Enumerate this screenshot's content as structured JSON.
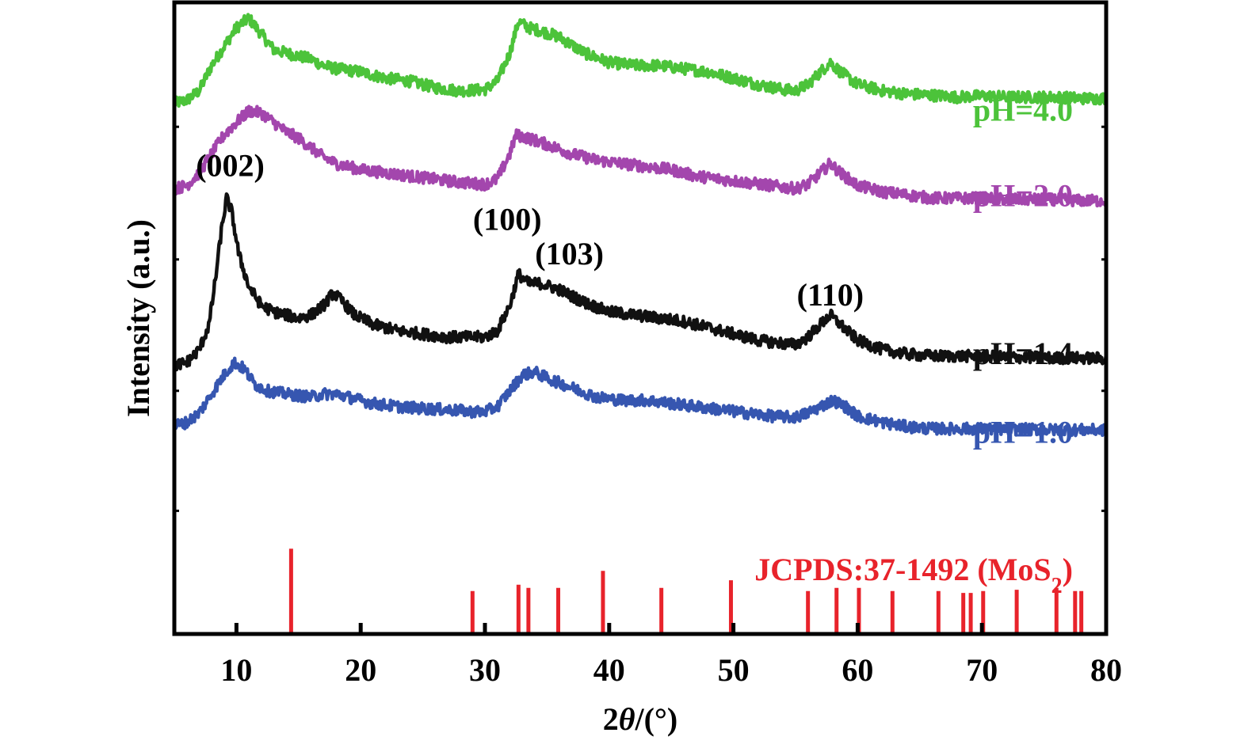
{
  "chart_data": {
    "type": "line",
    "xlabel_prefix": "2",
    "xlabel_theta": "θ",
    "xlabel_suffix": "/(°)",
    "ylabel": "Intensity (a.u.)",
    "xlim": [
      5,
      80
    ],
    "ylim": [
      0,
      1
    ],
    "x_ticks": [
      10,
      20,
      30,
      40,
      50,
      60,
      70,
      80
    ],
    "y_ticks": [
      0.195,
      0.385,
      0.593,
      0.803
    ],
    "colors": {
      "green": "#4cc33a",
      "purple": "#a346ad",
      "black": "#111111",
      "blue": "#3656b0",
      "red": "#e8232b"
    },
    "series": [
      {
        "label": "pH=4.0",
        "color": "#4cc33a",
        "points": [
          [
            5,
            0.84
          ],
          [
            6,
            0.845
          ],
          [
            7,
            0.86
          ],
          [
            8,
            0.9
          ],
          [
            9,
            0.93
          ],
          [
            10,
            0.96
          ],
          [
            11,
            0.975
          ],
          [
            12,
            0.95
          ],
          [
            13,
            0.925
          ],
          [
            14,
            0.92
          ],
          [
            15,
            0.915
          ],
          [
            16,
            0.91
          ],
          [
            17,
            0.9
          ],
          [
            18,
            0.895
          ],
          [
            20,
            0.89
          ],
          [
            22,
            0.88
          ],
          [
            24,
            0.875
          ],
          [
            26,
            0.865
          ],
          [
            28,
            0.86
          ],
          [
            30,
            0.862
          ],
          [
            31,
            0.875
          ],
          [
            32,
            0.92
          ],
          [
            32.7,
            0.97
          ],
          [
            33.5,
            0.96
          ],
          [
            34.5,
            0.955
          ],
          [
            36,
            0.945
          ],
          [
            38,
            0.92
          ],
          [
            40,
            0.905
          ],
          [
            42,
            0.9
          ],
          [
            44,
            0.9
          ],
          [
            46,
            0.895
          ],
          [
            48,
            0.89
          ],
          [
            50,
            0.88
          ],
          [
            52,
            0.87
          ],
          [
            54,
            0.862
          ],
          [
            55,
            0.86
          ],
          [
            56,
            0.87
          ],
          [
            57,
            0.89
          ],
          [
            57.8,
            0.905
          ],
          [
            58.6,
            0.89
          ],
          [
            60,
            0.87
          ],
          [
            62,
            0.86
          ],
          [
            64,
            0.855
          ],
          [
            66,
            0.853
          ],
          [
            68,
            0.85
          ],
          [
            70,
            0.852
          ],
          [
            72,
            0.85
          ],
          [
            74,
            0.85
          ],
          [
            76,
            0.85
          ],
          [
            78,
            0.848
          ],
          [
            80,
            0.848
          ]
        ]
      },
      {
        "label": "pH=2.0",
        "color": "#a346ad",
        "points": [
          [
            5,
            0.705
          ],
          [
            6,
            0.71
          ],
          [
            7,
            0.73
          ],
          [
            8,
            0.76
          ],
          [
            9,
            0.79
          ],
          [
            10,
            0.81
          ],
          [
            11,
            0.828
          ],
          [
            12,
            0.825
          ],
          [
            13,
            0.81
          ],
          [
            14,
            0.795
          ],
          [
            15,
            0.785
          ],
          [
            16,
            0.77
          ],
          [
            17,
            0.755
          ],
          [
            18,
            0.745
          ],
          [
            20,
            0.735
          ],
          [
            22,
            0.73
          ],
          [
            24,
            0.725
          ],
          [
            26,
            0.72
          ],
          [
            28,
            0.715
          ],
          [
            30,
            0.712
          ],
          [
            31,
            0.72
          ],
          [
            32,
            0.76
          ],
          [
            32.5,
            0.79
          ],
          [
            33.5,
            0.785
          ],
          [
            35,
            0.775
          ],
          [
            37,
            0.76
          ],
          [
            39,
            0.75
          ],
          [
            41,
            0.745
          ],
          [
            43,
            0.74
          ],
          [
            45,
            0.735
          ],
          [
            47,
            0.725
          ],
          [
            49,
            0.72
          ],
          [
            51,
            0.715
          ],
          [
            53,
            0.71
          ],
          [
            55,
            0.705
          ],
          [
            56,
            0.712
          ],
          [
            57,
            0.73
          ],
          [
            57.8,
            0.745
          ],
          [
            58.6,
            0.73
          ],
          [
            60,
            0.71
          ],
          [
            62,
            0.7
          ],
          [
            64,
            0.695
          ],
          [
            66,
            0.69
          ],
          [
            68,
            0.69
          ],
          [
            70,
            0.69
          ],
          [
            72,
            0.688
          ],
          [
            74,
            0.688
          ],
          [
            76,
            0.688
          ],
          [
            78,
            0.686
          ],
          [
            80,
            0.686
          ]
        ]
      },
      {
        "label": "pH=1.4",
        "color": "#111111",
        "points": [
          [
            5,
            0.425
          ],
          [
            6,
            0.43
          ],
          [
            7,
            0.45
          ],
          [
            7.8,
            0.49
          ],
          [
            8.3,
            0.56
          ],
          [
            8.8,
            0.64
          ],
          [
            9.2,
            0.69
          ],
          [
            9.6,
            0.67
          ],
          [
            10.2,
            0.6
          ],
          [
            11,
            0.55
          ],
          [
            12,
            0.52
          ],
          [
            13,
            0.51
          ],
          [
            14,
            0.505
          ],
          [
            15,
            0.5
          ],
          [
            16,
            0.505
          ],
          [
            17,
            0.52
          ],
          [
            17.8,
            0.54
          ],
          [
            18.6,
            0.525
          ],
          [
            19.5,
            0.505
          ],
          [
            21,
            0.49
          ],
          [
            23,
            0.48
          ],
          [
            25,
            0.475
          ],
          [
            27,
            0.47
          ],
          [
            29,
            0.47
          ],
          [
            30,
            0.47
          ],
          [
            31,
            0.48
          ],
          [
            32,
            0.52
          ],
          [
            32.7,
            0.57
          ],
          [
            33.5,
            0.555
          ],
          [
            34.5,
            0.555
          ],
          [
            36,
            0.545
          ],
          [
            38,
            0.525
          ],
          [
            40,
            0.51
          ],
          [
            42,
            0.505
          ],
          [
            44,
            0.5
          ],
          [
            46,
            0.495
          ],
          [
            48,
            0.485
          ],
          [
            50,
            0.475
          ],
          [
            52,
            0.465
          ],
          [
            54,
            0.46
          ],
          [
            55,
            0.458
          ],
          [
            56,
            0.47
          ],
          [
            57,
            0.49
          ],
          [
            57.8,
            0.505
          ],
          [
            58.6,
            0.49
          ],
          [
            60,
            0.465
          ],
          [
            62,
            0.45
          ],
          [
            64,
            0.443
          ],
          [
            66,
            0.44
          ],
          [
            68,
            0.44
          ],
          [
            70,
            0.44
          ],
          [
            72,
            0.438
          ],
          [
            74,
            0.438
          ],
          [
            76,
            0.437
          ],
          [
            78,
            0.437
          ],
          [
            80,
            0.436
          ]
        ]
      },
      {
        "label": "pH=1.0",
        "color": "#3656b0",
        "points": [
          [
            5,
            0.33
          ],
          [
            6,
            0.335
          ],
          [
            7,
            0.35
          ],
          [
            8,
            0.38
          ],
          [
            9,
            0.41
          ],
          [
            9.8,
            0.43
          ],
          [
            10.6,
            0.42
          ],
          [
            11.5,
            0.395
          ],
          [
            12.5,
            0.385
          ],
          [
            14,
            0.38
          ],
          [
            16,
            0.375
          ],
          [
            17,
            0.38
          ],
          [
            18,
            0.38
          ],
          [
            19,
            0.375
          ],
          [
            21,
            0.365
          ],
          [
            23,
            0.36
          ],
          [
            25,
            0.357
          ],
          [
            27,
            0.355
          ],
          [
            29,
            0.352
          ],
          [
            30,
            0.352
          ],
          [
            31,
            0.36
          ],
          [
            32,
            0.385
          ],
          [
            33,
            0.41
          ],
          [
            34,
            0.415
          ],
          [
            35,
            0.405
          ],
          [
            37,
            0.39
          ],
          [
            39,
            0.375
          ],
          [
            41,
            0.37
          ],
          [
            43,
            0.37
          ],
          [
            45,
            0.365
          ],
          [
            47,
            0.36
          ],
          [
            49,
            0.355
          ],
          [
            51,
            0.35
          ],
          [
            53,
            0.345
          ],
          [
            55,
            0.343
          ],
          [
            56,
            0.35
          ],
          [
            57,
            0.36
          ],
          [
            58,
            0.37
          ],
          [
            59,
            0.36
          ],
          [
            60,
            0.345
          ],
          [
            62,
            0.335
          ],
          [
            64,
            0.328
          ],
          [
            66,
            0.325
          ],
          [
            68,
            0.325
          ],
          [
            70,
            0.325
          ],
          [
            72,
            0.324
          ],
          [
            74,
            0.324
          ],
          [
            76,
            0.323
          ],
          [
            78,
            0.323
          ],
          [
            80,
            0.323
          ]
        ]
      }
    ],
    "reference": {
      "label_main": "JCPDS:37-1492 (MoS",
      "label_sub": "2",
      "label_end": ")",
      "color": "#e8232b",
      "peaks": [
        {
          "x": 14.4,
          "h": 0.135
        },
        {
          "x": 29.0,
          "h": 0.068
        },
        {
          "x": 32.7,
          "h": 0.078
        },
        {
          "x": 33.5,
          "h": 0.073
        },
        {
          "x": 35.9,
          "h": 0.073
        },
        {
          "x": 39.5,
          "h": 0.1
        },
        {
          "x": 44.2,
          "h": 0.073
        },
        {
          "x": 49.8,
          "h": 0.085
        },
        {
          "x": 56.0,
          "h": 0.068
        },
        {
          "x": 58.3,
          "h": 0.073
        },
        {
          "x": 60.1,
          "h": 0.073
        },
        {
          "x": 62.8,
          "h": 0.068
        },
        {
          "x": 66.5,
          "h": 0.068
        },
        {
          "x": 68.5,
          "h": 0.065
        },
        {
          "x": 69.1,
          "h": 0.065
        },
        {
          "x": 70.1,
          "h": 0.068
        },
        {
          "x": 72.8,
          "h": 0.07
        },
        {
          "x": 76.0,
          "h": 0.073
        },
        {
          "x": 77.5,
          "h": 0.068
        },
        {
          "x": 78.0,
          "h": 0.068
        }
      ]
    },
    "annotations": [
      {
        "text": "(002)",
        "x": 9.5,
        "y": 0.725
      },
      {
        "text": "(100)",
        "x": 31.8,
        "y": 0.64
      },
      {
        "text": "(103)",
        "x": 36.8,
        "y": 0.585
      },
      {
        "text": "(110)",
        "x": 57.8,
        "y": 0.52
      }
    ]
  }
}
